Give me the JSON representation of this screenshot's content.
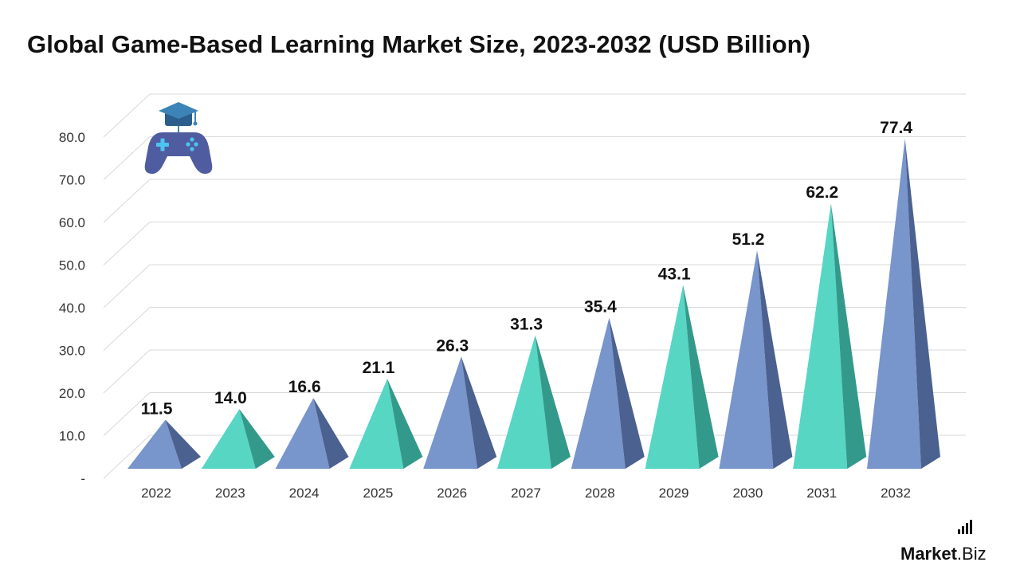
{
  "chart_data": {
    "type": "bar",
    "title": "Global Game-Based Learning Market Size, 2023-2032 (USD Billion)",
    "categories": [
      "2022",
      "2023",
      "2024",
      "2025",
      "2026",
      "2027",
      "2028",
      "2029",
      "2030",
      "2031",
      "2032"
    ],
    "values": [
      11.5,
      14.0,
      16.6,
      21.1,
      26.3,
      31.3,
      35.4,
      43.1,
      51.2,
      62.2,
      77.4
    ],
    "value_labels": [
      "11.5",
      "14.0",
      "16.6",
      "21.1",
      "26.3",
      "31.3",
      "35.4",
      "43.1",
      "51.2",
      "62.2",
      "77.4"
    ],
    "ytick_labels": [
      "-",
      "10.0",
      "20.0",
      "30.0",
      "40.0",
      "50.0",
      "60.0",
      "70.0",
      "80.0"
    ],
    "ylim": [
      0,
      80
    ],
    "grid": true,
    "colors": {
      "blue_front": "#7895CC",
      "blue_side": "#4B6190",
      "teal_front": "#56D6C3",
      "teal_side": "#339A8B"
    }
  },
  "icons": [
    "graduation-cap-icon",
    "gamepad-icon"
  ],
  "brand": {
    "bold": "Market",
    "light": ".Biz"
  }
}
